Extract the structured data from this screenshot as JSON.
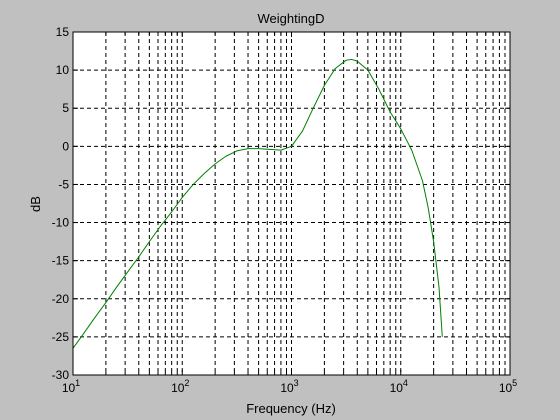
{
  "chart_data": {
    "type": "line",
    "title": "WeightingD",
    "xlabel": "Frequency (Hz)",
    "ylabel": "dB",
    "xscale": "log",
    "xlim": [
      10,
      100000
    ],
    "ylim": [
      -30,
      15
    ],
    "grid": true,
    "x_ticks": [
      10,
      100,
      1000,
      10000,
      100000
    ],
    "x_tick_labels": [
      {
        "base": "10",
        "exp": "1"
      },
      {
        "base": "10",
        "exp": "2"
      },
      {
        "base": "10",
        "exp": "3"
      },
      {
        "base": "10",
        "exp": "4"
      },
      {
        "base": "10",
        "exp": "5"
      }
    ],
    "y_ticks": [
      15,
      10,
      5,
      0,
      -5,
      -10,
      -15,
      -20,
      -25,
      -30
    ],
    "series": [
      {
        "color": "#007f00",
        "x": [
          10,
          12.6,
          15.8,
          20,
          25,
          31.6,
          40,
          50,
          63,
          80,
          100,
          126,
          158,
          200,
          251,
          316,
          400,
          500,
          630,
          800,
          1000,
          1260,
          1580,
          2000,
          2510,
          3160,
          3550,
          3980,
          5000,
          6300,
          8000,
          10000,
          12600,
          15800,
          17800,
          20000,
          22400,
          24000
        ],
        "y": [
          -26.5,
          -24.5,
          -22.5,
          -20.5,
          -18.5,
          -16.5,
          -14.5,
          -12.5,
          -10.5,
          -8.6,
          -6.7,
          -5.0,
          -3.6,
          -2.3,
          -1.3,
          -0.6,
          -0.3,
          -0.3,
          -0.4,
          -0.5,
          0.0,
          2.0,
          5.0,
          8.0,
          10.2,
          11.3,
          11.4,
          11.2,
          10.0,
          7.5,
          4.5,
          2.3,
          -0.5,
          -4.5,
          -8.0,
          -12.5,
          -18.5,
          -25.0
        ]
      }
    ]
  }
}
